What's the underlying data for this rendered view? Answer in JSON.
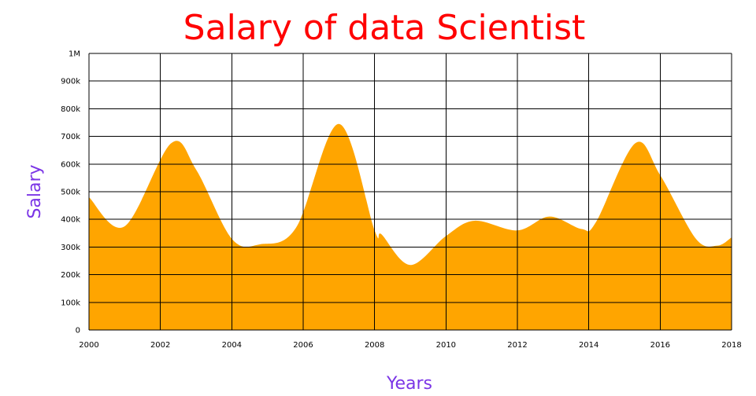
{
  "chart_data": {
    "type": "area",
    "title": "Salary of data Scientist",
    "xlabel": "Years",
    "ylabel": "Salary",
    "xlim": [
      2000,
      2018
    ],
    "ylim": [
      0,
      1000000
    ],
    "x_ticks": [
      2000,
      2002,
      2004,
      2006,
      2008,
      2010,
      2012,
      2014,
      2016,
      2018
    ],
    "x_tick_labels": [
      "2000",
      "2002",
      "2004",
      "2006",
      "2008",
      "2010",
      "2012",
      "2014",
      "2016",
      "2018"
    ],
    "y_ticks": [
      0,
      100000,
      200000,
      300000,
      400000,
      500000,
      600000,
      700000,
      800000,
      900000,
      1000000
    ],
    "y_tick_labels": [
      "0",
      "100k",
      "200k",
      "300k",
      "400k",
      "500k",
      "600k",
      "700k",
      "800k",
      "900k",
      "1M"
    ],
    "grid": true,
    "colors": {
      "fill": "#ffa500",
      "title": "#ff0000",
      "axis_labels": "#7b35e6",
      "grid": "#000000"
    },
    "series": [
      {
        "x": [
          2000,
          2001,
          2002.3,
          2003,
          2004,
          2004.8,
          2005.8,
          2007,
          2008,
          2008.2,
          2009,
          2010,
          2010.8,
          2012,
          2012.9,
          2013.8,
          2014.2,
          2015.3,
          2016,
          2017,
          2017.6,
          2018
        ],
        "values": [
          480000,
          375000,
          675000,
          580000,
          330000,
          310000,
          370000,
          745000,
          360000,
          345000,
          235000,
          340000,
          395000,
          360000,
          410000,
          365000,
          390000,
          675000,
          560000,
          330000,
          305000,
          335000
        ]
      }
    ]
  }
}
